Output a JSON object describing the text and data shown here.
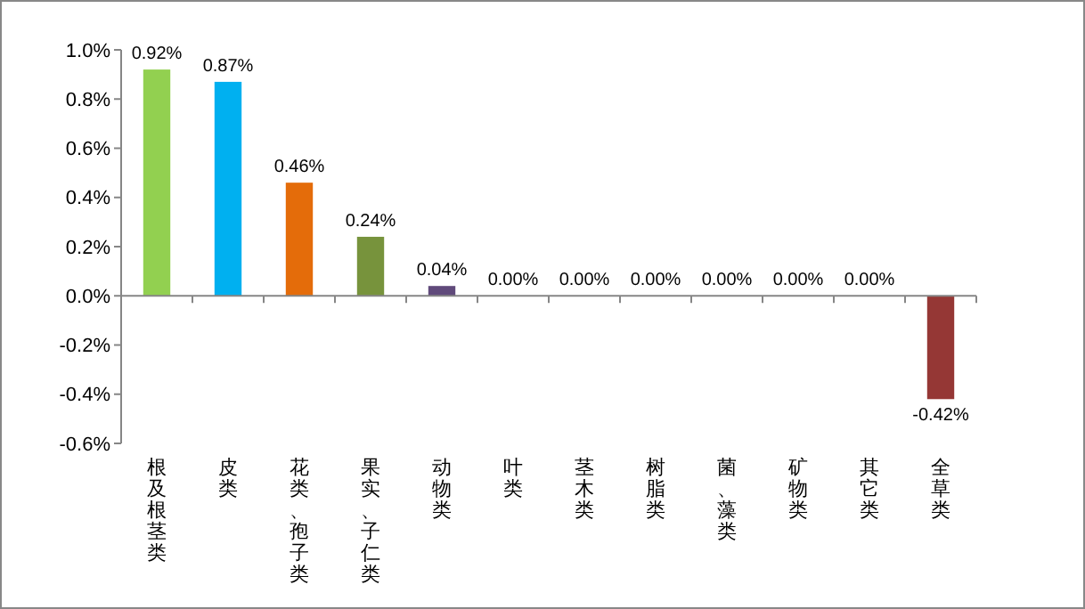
{
  "chart_data": {
    "type": "bar",
    "categories": [
      "根及根茎类",
      "皮类",
      "花类、孢子类",
      "果实、子仁类",
      "动物类",
      "叶类",
      "茎木类",
      "树脂类",
      "菌、藻类",
      "矿物类",
      "其它类",
      "全草类"
    ],
    "values": [
      0.92,
      0.87,
      0.46,
      0.24,
      0.04,
      0,
      0,
      0,
      0,
      0,
      0,
      -0.42
    ],
    "colors": [
      "#92d050",
      "#00b0f0",
      "#e46c0a",
      "#77933c",
      "#604a7b",
      "#4f81bd",
      "#4f81bd",
      "#4f81bd",
      "#4f81bd",
      "#4f81bd",
      "#4f81bd",
      "#953735"
    ],
    "value_labels": [
      "0.92%",
      "0.87%",
      "0.46%",
      "0.24%",
      "0.04%",
      "0.00%",
      "0.00%",
      "0.00%",
      "0.00%",
      "0.00%",
      "0.00%",
      "-0.42%"
    ],
    "ylim": [
      -0.6,
      1.0
    ],
    "yticks": [
      {
        "value": -0.6,
        "label": "-0.6%"
      },
      {
        "value": -0.4,
        "label": "-0.4%"
      },
      {
        "value": -0.2,
        "label": "-0.2%"
      },
      {
        "value": 0,
        "label": "0.0%"
      },
      {
        "value": 0.2,
        "label": "0.2%"
      },
      {
        "value": 0.4,
        "label": "0.4%"
      },
      {
        "value": 0.6,
        "label": "0.6%"
      },
      {
        "value": 0.8,
        "label": "0.8%"
      },
      {
        "value": 1.0,
        "label": "1.0%"
      }
    ]
  }
}
